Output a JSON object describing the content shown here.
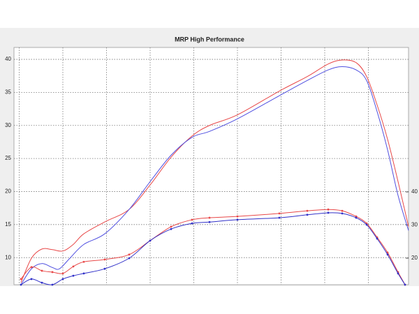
{
  "chart_data": {
    "type": "line",
    "title": "MRP High Performance",
    "ylim": [
      5.9,
      41.8
    ],
    "yticks": [
      10,
      15,
      20,
      25,
      30,
      35,
      40
    ],
    "y2lim": [
      12,
      83.6
    ],
    "y2ticks": [
      20,
      30,
      40
    ],
    "xlim": [
      -0.12,
      8.92
    ],
    "grid": true,
    "series": [
      {
        "color": "#e84848",
        "markers": false,
        "x": [
          0.04,
          0.28,
          0.52,
          0.76,
          1.0,
          1.24,
          1.48,
          1.96,
          2.52,
          3.0,
          3.48,
          3.96,
          4.36,
          5.0,
          5.96,
          6.6,
          7.08,
          7.4,
          7.72,
          7.96,
          8.2,
          8.44,
          8.68,
          8.92
        ],
        "values": [
          6.2,
          9.9,
          11.3,
          11.2,
          11.0,
          12.0,
          13.6,
          15.4,
          17.3,
          21.0,
          25.2,
          28.4,
          30.0,
          31.6,
          35.2,
          37.4,
          39.3,
          39.9,
          39.5,
          37.4,
          33.1,
          27.9,
          21.5,
          14.7
        ]
      },
      {
        "color": "#5050e0",
        "markers": false,
        "x": [
          0.04,
          0.28,
          0.52,
          0.76,
          0.92,
          1.16,
          1.48,
          1.96,
          2.52,
          3.0,
          3.48,
          3.96,
          4.36,
          5.0,
          5.96,
          6.6,
          7.08,
          7.4,
          7.72,
          7.96,
          8.2,
          8.44,
          8.68,
          8.92
        ],
        "values": [
          5.9,
          8.3,
          9.1,
          8.5,
          8.3,
          9.9,
          12.0,
          13.6,
          17.3,
          21.5,
          25.5,
          28.2,
          29.1,
          31.0,
          34.5,
          36.8,
          38.4,
          38.9,
          38.4,
          36.8,
          32.1,
          26.3,
          19.4,
          14.1
        ]
      },
      {
        "color": "#e84848",
        "markers": true,
        "axis": "y2",
        "x": [
          0.04,
          0.28,
          0.52,
          0.76,
          1.0,
          1.24,
          1.48,
          1.96,
          2.52,
          3.0,
          3.48,
          3.96,
          4.36,
          5.0,
          5.96,
          6.6,
          7.08,
          7.4,
          7.72,
          7.96,
          8.2,
          8.44,
          8.68,
          8.84
        ],
        "values": [
          13.7,
          17.3,
          16.2,
          15.8,
          15.4,
          17.5,
          18.9,
          19.6,
          21.1,
          25.3,
          29.5,
          31.6,
          32.2,
          32.6,
          33.5,
          34.3,
          34.7,
          34.3,
          32.6,
          30.5,
          26.3,
          21.7,
          15.8,
          12.0
        ]
      },
      {
        "color": "#3030c8",
        "markers": true,
        "axis": "y2",
        "x": [
          0.04,
          0.28,
          0.52,
          0.76,
          1.0,
          1.24,
          1.48,
          1.96,
          2.52,
          3.0,
          3.48,
          3.96,
          4.36,
          5.0,
          5.96,
          6.6,
          7.08,
          7.4,
          7.72,
          7.96,
          8.2,
          8.44,
          8.68,
          8.84
        ],
        "values": [
          12.0,
          13.7,
          12.6,
          12.0,
          13.7,
          14.7,
          15.4,
          16.8,
          20.0,
          25.3,
          28.8,
          30.5,
          30.9,
          31.6,
          32.2,
          33.1,
          33.7,
          33.5,
          32.2,
          30.1,
          25.9,
          21.1,
          15.4,
          12.0
        ]
      }
    ]
  }
}
